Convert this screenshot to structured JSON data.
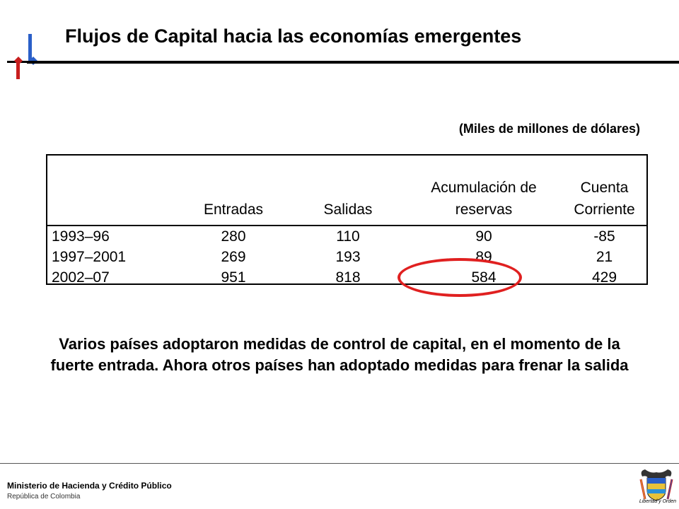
{
  "header": {
    "title": "Flujos de Capital hacia las economías emergentes"
  },
  "table": {
    "units": "(Miles de millones de dólares)",
    "columns": [
      "",
      "Entradas",
      "Salidas",
      "Acumulación de reservas",
      "Cuenta Corriente"
    ],
    "rows": [
      {
        "period": "1993–96",
        "entradas": "280",
        "salidas": "110",
        "acumulacion": "90",
        "cuenta": "-85"
      },
      {
        "period": "1997–2001",
        "entradas": "269",
        "salidas": "193",
        "acumulacion": "89",
        "cuenta": "21"
      },
      {
        "period": "2002–07",
        "entradas": "951",
        "salidas": "818",
        "acumulacion": "584",
        "cuenta": "429"
      }
    ],
    "highlighted_cell": "584"
  },
  "note": "Varios países adoptaron medidas de control de capital, en el momento de la fuerte entrada. Ahora otros países han adoptado medidas para frenar la salida",
  "footer": {
    "ministry": "Ministerio de Hacienda y Crédito Público",
    "country": "República de Colombia",
    "crest_motto": "Libertad y Orden"
  },
  "colors": {
    "accent_red": "#e02020",
    "logo_blue": "#2a5fc8",
    "logo_red": "#c81e1e"
  },
  "icons": [
    "ministry-logo-icon",
    "colombia-crest-icon"
  ]
}
